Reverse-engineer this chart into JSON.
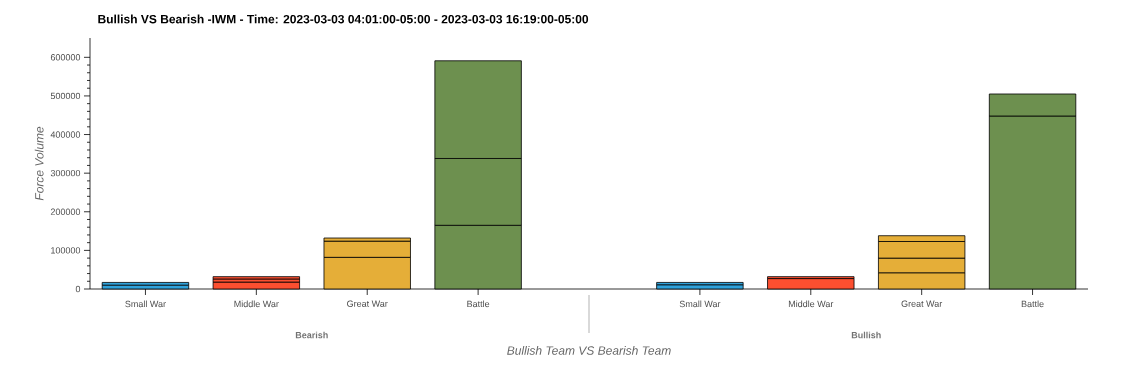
{
  "chart_data": {
    "type": "bar",
    "title": "Bullish VS Bearish -IWM - Time:  2023-03-03 04:01:00-05:00 - 2023-03-03 16:19:00-05:00",
    "xlabel": "Bullish Team VS Bearish Team",
    "ylabel": "Force Volume",
    "annotations": [
      "Bearish",
      "Bullish"
    ],
    "categories": [
      "Small War",
      "Middle War",
      "Great War",
      "Battle",
      null,
      "Small War",
      "Middle War",
      "Great War",
      "Battle"
    ],
    "stacked": true,
    "series": [
      {
        "colors": [
          "#30a2da",
          "#fc4f30",
          "#e5ae38",
          "#6d904f",
          null,
          "#30a2da",
          "#fc4f30",
          "#e5ae38",
          "#6d904f"
        ],
        "values": [
          10000,
          18000,
          82000,
          165000,
          null,
          11000,
          27000,
          42000,
          448000
        ]
      },
      {
        "colors": [
          "#30a2da",
          "#fc4f30",
          "#e5ae38",
          "#6d904f",
          null,
          "#30a2da",
          "#fc4f30",
          "#e5ae38",
          "#6d904f"
        ],
        "values": [
          7000,
          8000,
          42000,
          173000,
          null,
          6000,
          5000,
          38000,
          57000
        ]
      },
      {
        "colors": [
          "#30a2da",
          "#fc4f30",
          "#e5ae38",
          "#6d904f",
          null,
          "#30a2da",
          "#fc4f30",
          "#e5ae38",
          "#6d904f"
        ],
        "values": [
          null,
          6000,
          8000,
          253000,
          null,
          null,
          null,
          43000,
          null
        ]
      },
      {
        "colors": [
          "#30a2da",
          "#fc4f30",
          "#e5ae38",
          "#6d904f",
          null,
          "#30a2da",
          "#fc4f30",
          "#e5ae38",
          "#6d904f"
        ],
        "values": [
          null,
          null,
          null,
          null,
          null,
          null,
          null,
          15000,
          null
        ]
      }
    ],
    "ylim": [
      0,
      650000
    ],
    "yticks": [
      0,
      100000,
      200000,
      300000,
      400000,
      500000,
      600000
    ],
    "grid": false
  }
}
